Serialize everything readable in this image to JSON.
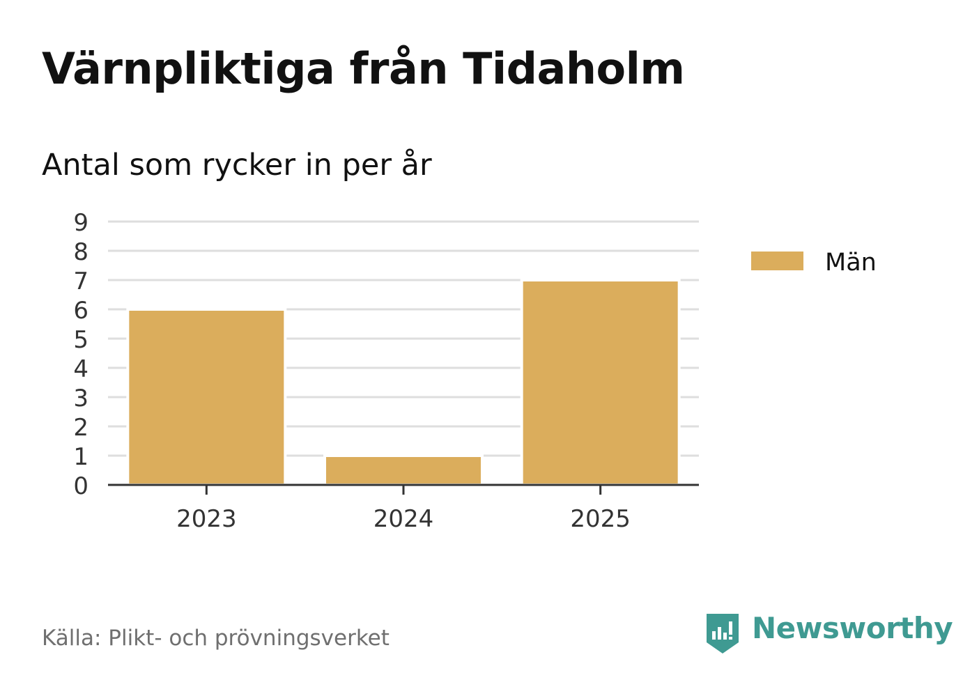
{
  "chart_data": {
    "type": "bar",
    "title": "Värnpliktiga från Tidaholm",
    "subtitle": "Antal som rycker in per år",
    "categories": [
      "2023",
      "2024",
      "2025"
    ],
    "series": [
      {
        "name": "Män",
        "values": [
          6,
          1,
          7
        ],
        "color": "#dbad5c"
      }
    ],
    "ylim": [
      0,
      9
    ],
    "yticks": [
      "0",
      "1",
      "2",
      "3",
      "4",
      "5",
      "6",
      "7",
      "8",
      "9"
    ],
    "grid": true,
    "legend": "right"
  },
  "source": "Källa: Plikt- och prövningsverket",
  "brand": {
    "name": "Newsworthy",
    "icon": "newsworthy-logo-icon",
    "color": "#3f9a92"
  }
}
